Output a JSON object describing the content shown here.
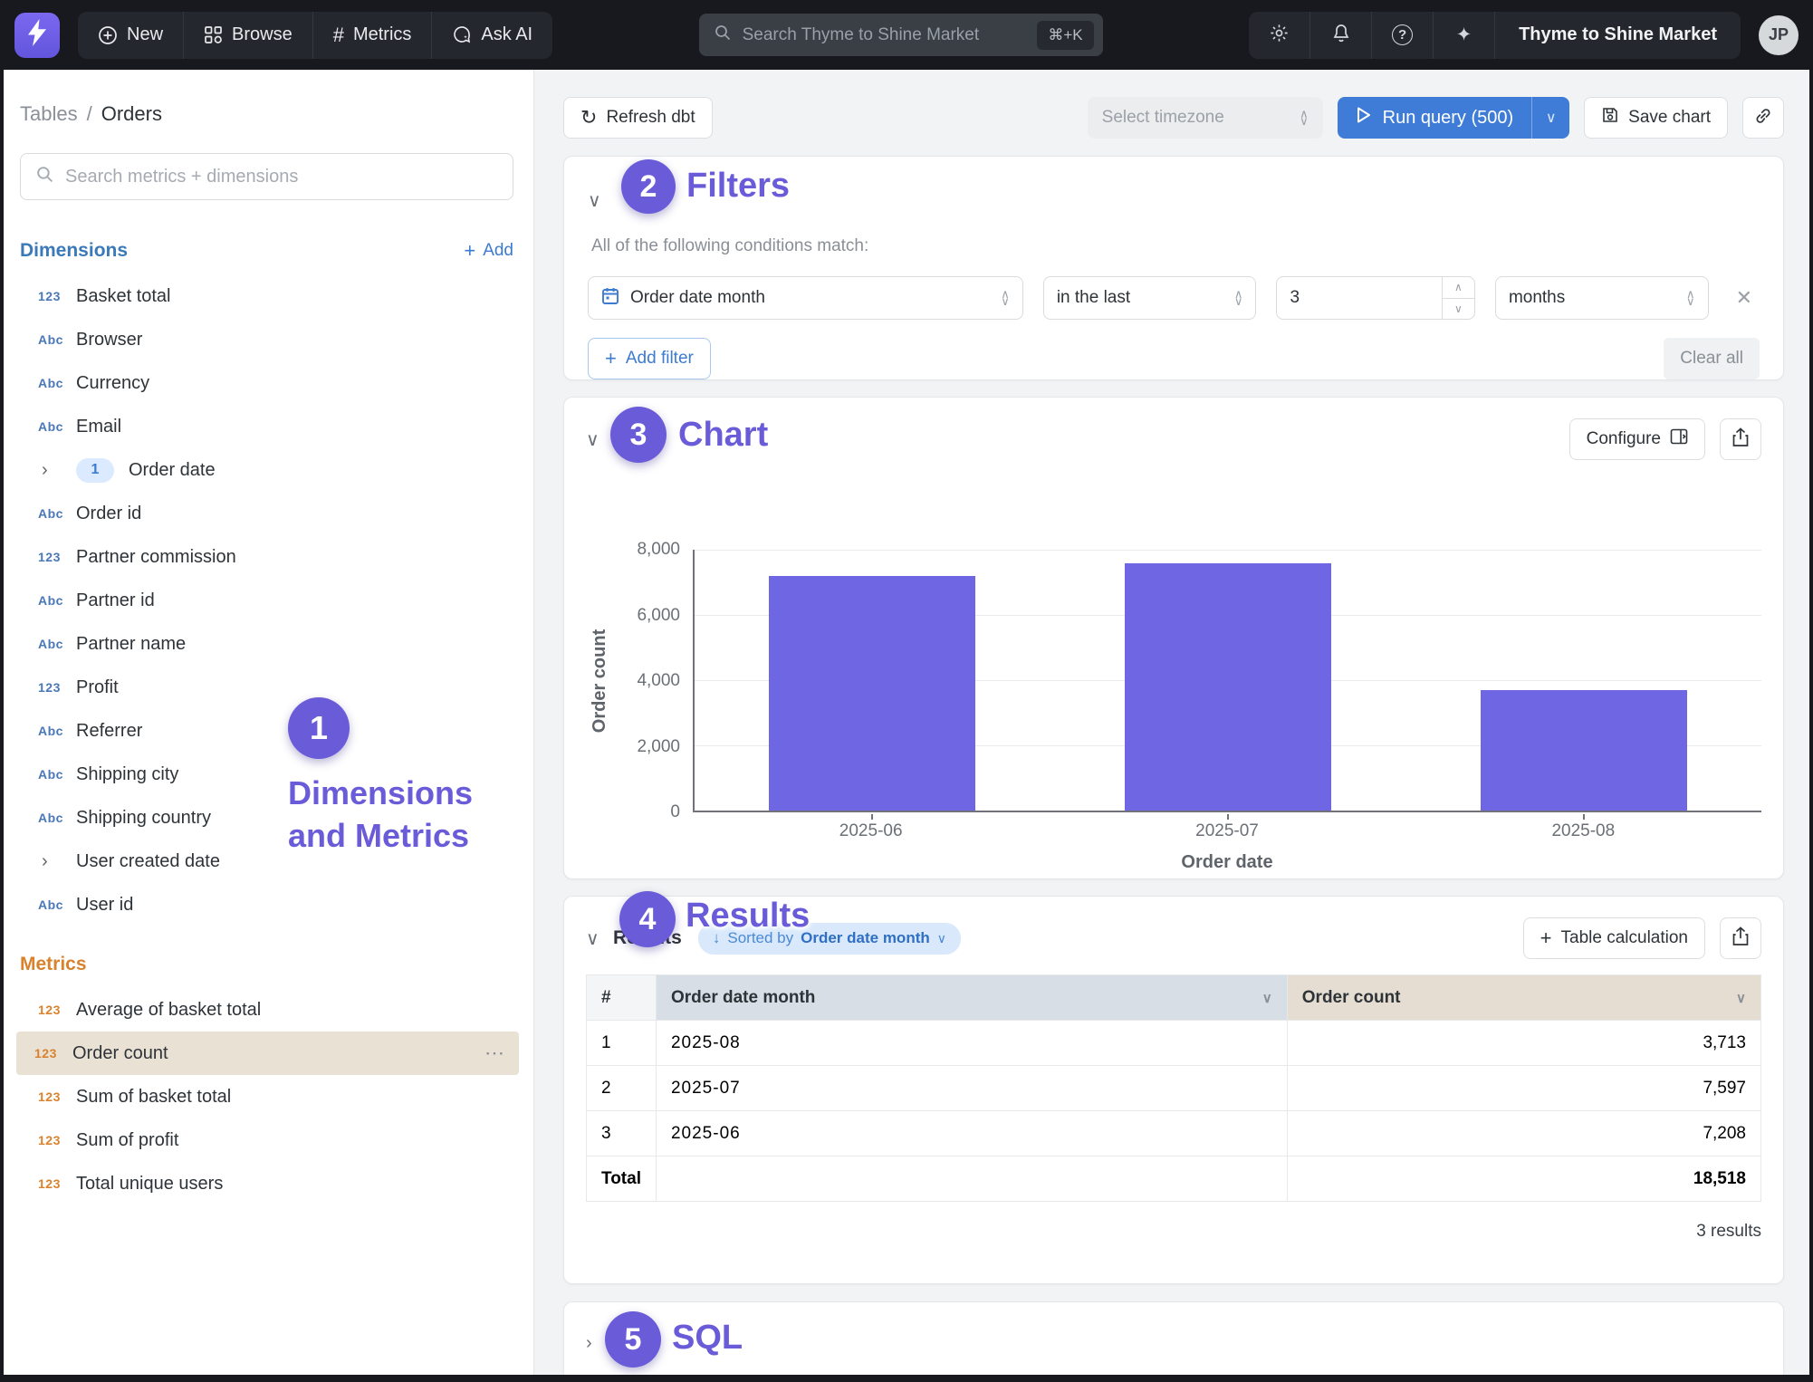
{
  "navbar": {
    "logo_icon": "lightning-bolt",
    "items": [
      {
        "label": "New",
        "icon": "plus-circle"
      },
      {
        "label": "Browse",
        "icon": "grid"
      },
      {
        "label": "Metrics",
        "icon": "hash"
      },
      {
        "label": "Ask AI",
        "icon": "chat-sparkle"
      }
    ],
    "hash_glyph": "#",
    "search": {
      "placeholder": "Search Thyme to Shine Market",
      "shortcut": "⌘+K"
    },
    "right_icons": [
      "gear",
      "bell",
      "help",
      "sparkles"
    ],
    "sparkles_glyph": "✦",
    "org_label": "Thyme to Shine Market",
    "avatar_initials": "JP"
  },
  "sidebar": {
    "breadcrumb": {
      "root": "Tables",
      "separator": "/",
      "current": "Orders"
    },
    "search_placeholder": "Search metrics + dimensions",
    "dimensions": {
      "title": "Dimensions",
      "add_label": "Add",
      "add_plus": "+",
      "items": [
        {
          "label": "Basket total",
          "icon": "123"
        },
        {
          "label": "Browser",
          "icon": "Abc"
        },
        {
          "label": "Currency",
          "icon": "Abc"
        },
        {
          "label": "Email",
          "icon": "Abc"
        },
        {
          "label": "Order date",
          "icon": "",
          "chevron": "›",
          "badge": "1"
        },
        {
          "label": "Order id",
          "icon": "Abc"
        },
        {
          "label": "Partner commission",
          "icon": "123"
        },
        {
          "label": "Partner id",
          "icon": "Abc"
        },
        {
          "label": "Partner name",
          "icon": "Abc"
        },
        {
          "label": "Profit",
          "icon": "123"
        },
        {
          "label": "Referrer",
          "icon": "Abc"
        },
        {
          "label": "Shipping city",
          "icon": "Abc"
        },
        {
          "label": "Shipping country",
          "icon": "Abc"
        },
        {
          "label": "User created date",
          "icon": "",
          "chevron": "›"
        },
        {
          "label": "User id",
          "icon": "Abc"
        }
      ]
    },
    "metrics": {
      "title": "Metrics",
      "items": [
        {
          "label": "Average of basket total",
          "icon": "123"
        },
        {
          "label": "Order count",
          "icon": "123",
          "selected": true,
          "menu_glyph": "⋯"
        },
        {
          "label": "Sum of basket total",
          "icon": "123"
        },
        {
          "label": "Sum of profit",
          "icon": "123"
        },
        {
          "label": "Total unique users",
          "icon": "123"
        }
      ]
    }
  },
  "toolbar": {
    "refresh_label": "Refresh dbt",
    "refresh_glyph": "↻",
    "timezone_placeholder": "Select timezone",
    "run_query_label": "Run query (500)",
    "run_caret": "∨",
    "save_chart_label": "Save chart"
  },
  "filters": {
    "title": "Filters",
    "condition_text": "All of the following conditions match:",
    "rule": {
      "field": "Order date month",
      "operator": "in the last",
      "value": "3",
      "unit": "months",
      "remove_glyph": "✕"
    },
    "add_filter_label": "Add filter",
    "add_plus": "+",
    "clear_all_label": "Clear all"
  },
  "chart_section": {
    "title": "Chart",
    "configure_label": "Configure"
  },
  "chart_data": {
    "type": "bar",
    "categories": [
      "2025-06",
      "2025-07",
      "2025-08"
    ],
    "values": [
      7208,
      7597,
      3713
    ],
    "series_name": "Order count",
    "xlabel": "Order date",
    "ylabel": "Order count",
    "ylim": [
      0,
      8000
    ],
    "yticks": [
      "8,000",
      "6,000",
      "4,000",
      "2,000",
      "0"
    ],
    "bar_color": "#6f66e3",
    "grid": true,
    "legend": false
  },
  "results": {
    "title": "Results",
    "sorted_by": {
      "arrow": "↓",
      "prefix": "Sorted by",
      "field": "Order date month",
      "caret": "∨"
    },
    "table_calculation_label": "Table calculation",
    "table_calculation_plus": "+",
    "table": {
      "columns": [
        "#",
        "Order date month",
        "Order count"
      ],
      "rows": [
        {
          "index": "1",
          "month": "2025-08",
          "count": "3,713"
        },
        {
          "index": "2",
          "month": "2025-07",
          "count": "7,597"
        },
        {
          "index": "3",
          "month": "2025-06",
          "count": "7,208"
        }
      ],
      "total_label": "Total",
      "total_value": "18,518"
    },
    "footer": "3 results"
  },
  "sql_section": {
    "title": "SQL"
  },
  "annotations": {
    "accent_color": "#6a5cd9",
    "items": [
      {
        "number": "1",
        "label": "Dimensions and Metrics"
      },
      {
        "number": "2",
        "label": "Filters"
      },
      {
        "number": "3",
        "label": "Chart"
      },
      {
        "number": "4",
        "label": "Results"
      },
      {
        "number": "5",
        "label": "SQL"
      }
    ]
  }
}
